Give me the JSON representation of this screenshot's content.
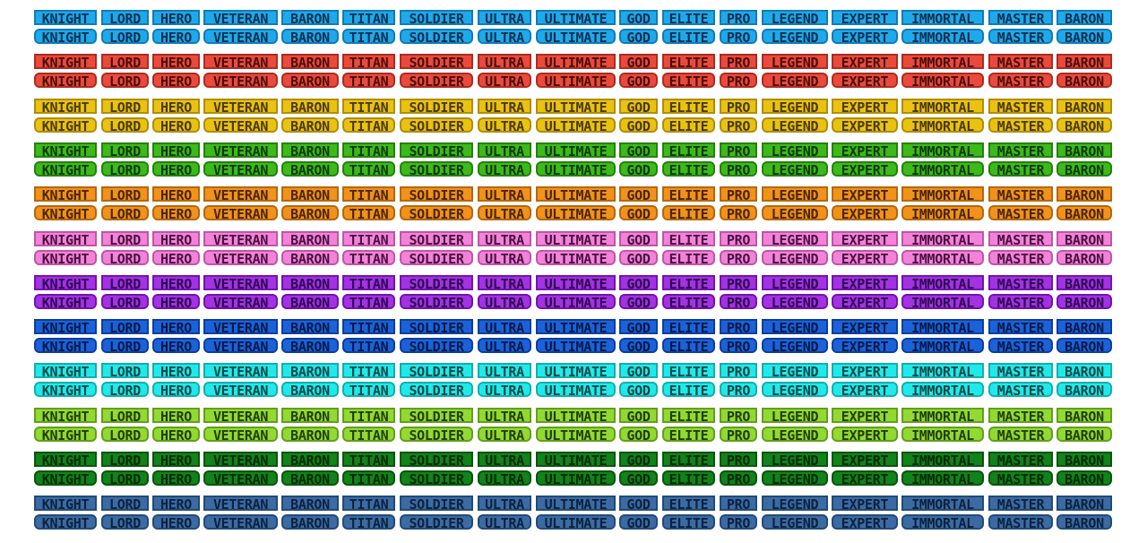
{
  "labels": [
    "KNIGHT",
    "LORD",
    "HERO",
    "VETERAN",
    "BARON",
    "TITAN",
    "SOLDIER",
    "ULTRA",
    "ULTIMATE",
    "GOD",
    "ELITE",
    "PRO",
    "LEGEND",
    "EXPERT",
    "IMMORTAL",
    "MASTER",
    "BARON"
  ],
  "styles": [
    "square",
    "rounded"
  ],
  "color_groups": [
    {
      "name": "sky-blue",
      "fill": "#1fa9ea",
      "border": "#0f7cb8",
      "text": "#0b3050"
    },
    {
      "name": "red",
      "fill": "#e94a3c",
      "border": "#b02a20",
      "text": "#4a0e0a"
    },
    {
      "name": "yellow",
      "fill": "#e9c212",
      "border": "#b08e08",
      "text": "#4a3a02"
    },
    {
      "name": "green",
      "fill": "#3eb91b",
      "border": "#22820c",
      "text": "#0c3a04"
    },
    {
      "name": "orange",
      "fill": "#f0921b",
      "border": "#b8660a",
      "text": "#4a2602"
    },
    {
      "name": "pink",
      "fill": "#f283d9",
      "border": "#c055aa",
      "text": "#4a1040"
    },
    {
      "name": "purple",
      "fill": "#a232e2",
      "border": "#7412b0",
      "text": "#2e0450"
    },
    {
      "name": "blue",
      "fill": "#1b62d9",
      "border": "#0c3ea0",
      "text": "#041a48"
    },
    {
      "name": "cyan",
      "fill": "#22e9e9",
      "border": "#10b0b0",
      "text": "#044848"
    },
    {
      "name": "lime",
      "fill": "#92d932",
      "border": "#62a01a",
      "text": "#223e04"
    },
    {
      "name": "dark-green",
      "fill": "#12821a",
      "border": "#06560c",
      "text": "#012a04"
    },
    {
      "name": "steel-blue",
      "fill": "#3b6ba2",
      "border": "#224a78",
      "text": "#0c2240"
    }
  ]
}
